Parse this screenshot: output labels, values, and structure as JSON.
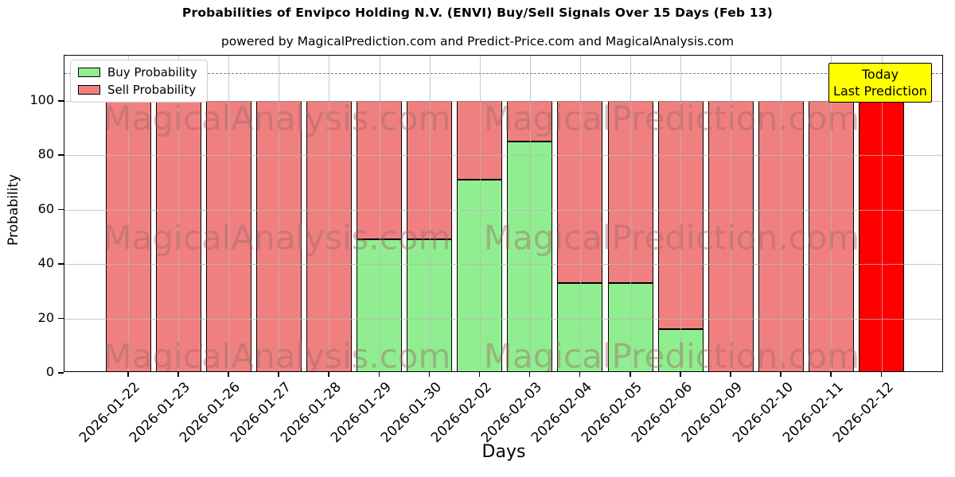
{
  "chart_data": {
    "type": "bar",
    "stacked": true,
    "title": "Probabilities of Envipco Holding N.V. (ENVI) Buy/Sell Signals Over 15 Days (Feb 13)",
    "subtitle": "powered by MagicalPrediction.com and Predict-Price.com and MagicalAnalysis.com",
    "xlabel": "Days",
    "ylabel": "Probability",
    "categories": [
      "2026-01-22",
      "2026-01-23",
      "2026-01-26",
      "2026-01-27",
      "2026-01-28",
      "2026-01-29",
      "2026-01-30",
      "2026-02-02",
      "2026-02-03",
      "2026-02-04",
      "2026-02-05",
      "2026-02-06",
      "2026-02-09",
      "2026-02-10",
      "2026-02-11",
      "2026-02-12"
    ],
    "series": [
      {
        "name": "Buy Probability",
        "color": "#90EE90",
        "values": [
          0,
          0,
          0,
          0,
          0,
          49,
          49,
          71,
          85,
          33,
          33,
          16,
          0,
          0,
          0,
          0
        ]
      },
      {
        "name": "Sell Probability",
        "color": "#F08080",
        "values": [
          100,
          100,
          100,
          100,
          100,
          51,
          51,
          29,
          15,
          67,
          67,
          84,
          100,
          100,
          100,
          100
        ]
      }
    ],
    "today": {
      "index": 15,
      "category": "2026-02-12",
      "value": 100,
      "color": "#FF0000",
      "box_color": "#FFFF00",
      "label_lines": [
        "Today",
        "Last Prediction"
      ]
    },
    "yticks": [
      0,
      20,
      40,
      60,
      80,
      100
    ],
    "ylim": [
      0,
      116.7
    ],
    "dashed_line_y": 110,
    "dashed_line_color": "#7a7a7a",
    "grid": true,
    "grid_color": "#b8b8b8",
    "bar_edge_color": "#000000",
    "legend_position": "upper left",
    "watermarks": [
      "MagicalAnalysis.com",
      "MagicalPrediction.com"
    ],
    "watermark_color": "#9c6666"
  }
}
